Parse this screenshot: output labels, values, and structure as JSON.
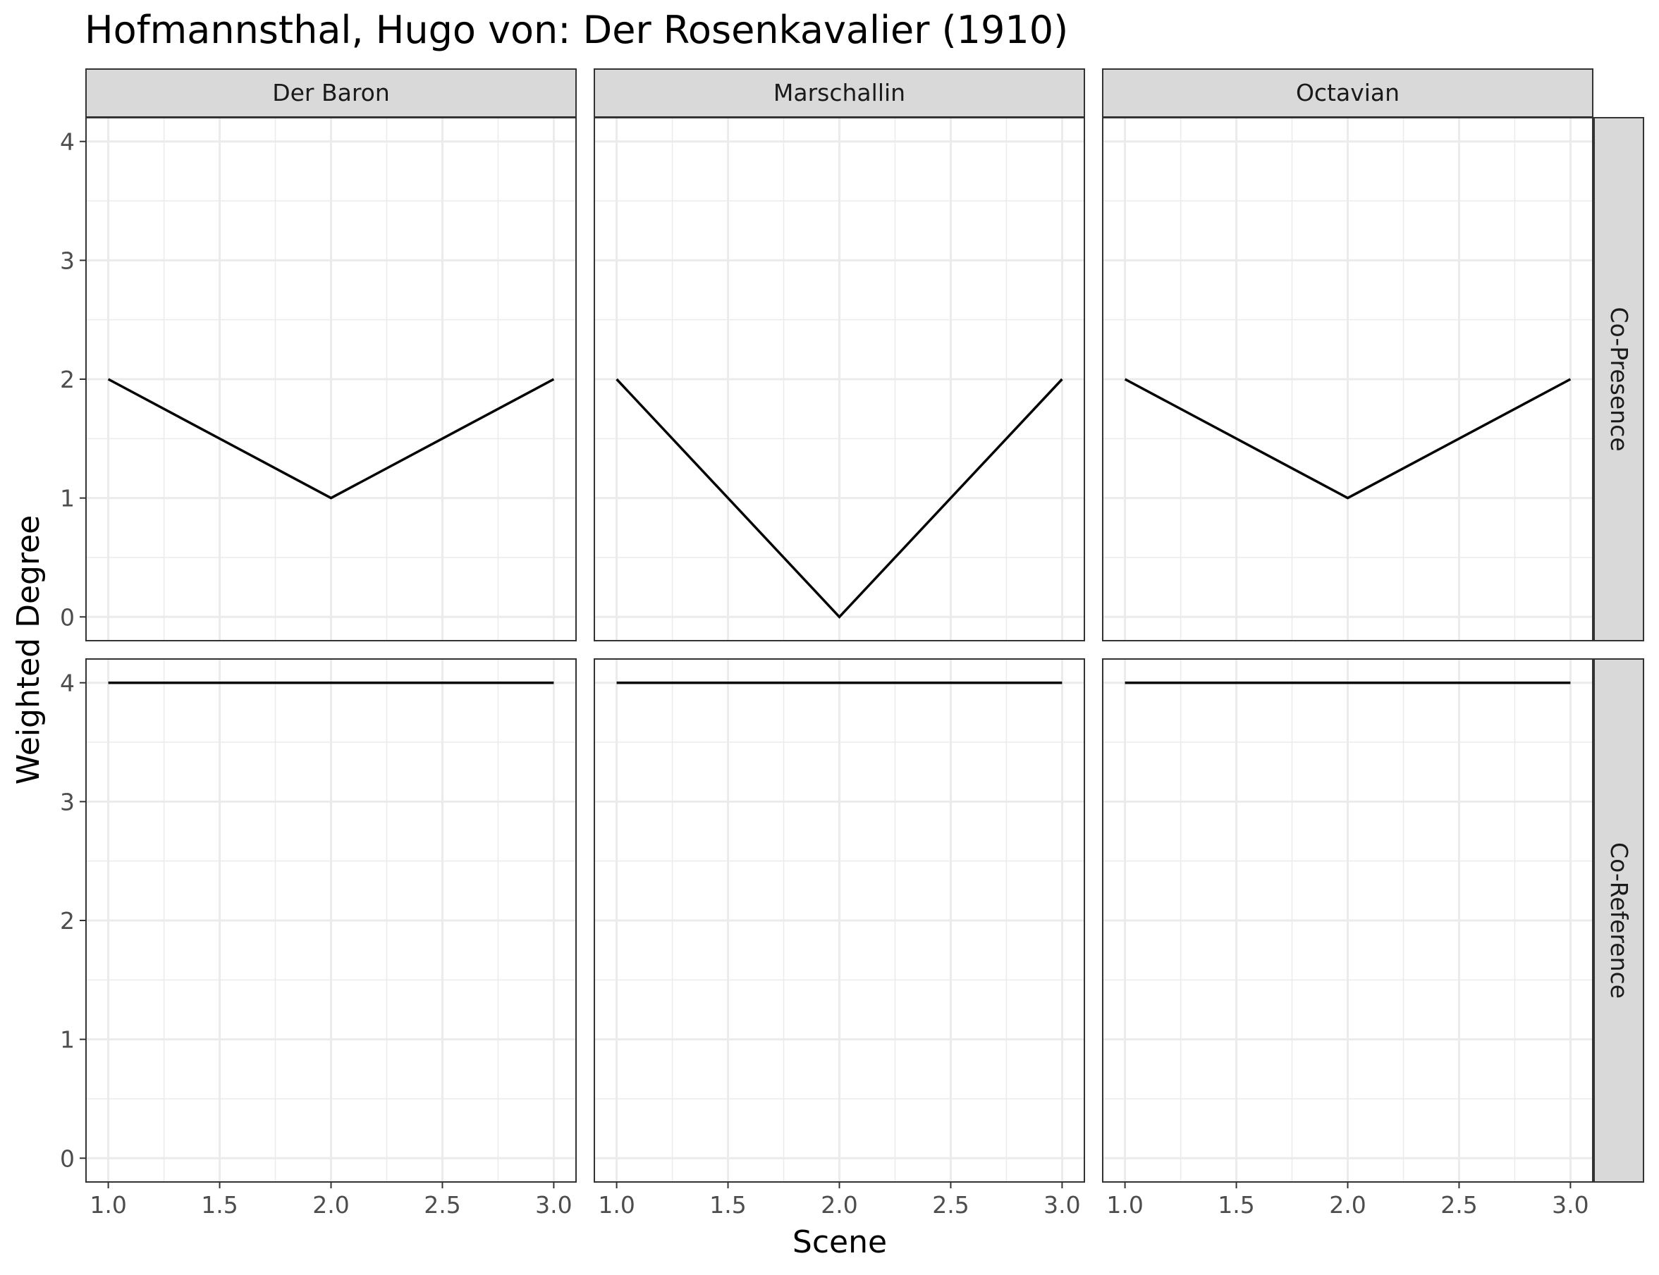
{
  "chart_data": {
    "type": "line",
    "title": "Hofmannsthal, Hugo von: Der Rosenkavalier (1910)",
    "xlabel": "Scene",
    "ylabel": "Weighted Degree",
    "xlim": [
      0.9,
      3.1
    ],
    "ylim": [
      -0.2,
      4.2
    ],
    "x_ticks": [
      "1.0",
      "1.5",
      "2.0",
      "2.5",
      "3.0"
    ],
    "y_ticks": [
      "0",
      "1",
      "2",
      "3",
      "4"
    ],
    "grid": true,
    "columns": [
      "Der Baron",
      "Marschallin",
      "Octavian"
    ],
    "rows": [
      "Co-Presence",
      "Co-Reference"
    ],
    "line_color": "#000000",
    "strip_color": "#d9d9d9",
    "panels": [
      {
        "column": "Der Baron",
        "row": "Co-Presence",
        "x": [
          1,
          2,
          3
        ],
        "y": [
          2,
          1,
          2
        ]
      },
      {
        "column": "Marschallin",
        "row": "Co-Presence",
        "x": [
          1,
          2,
          3
        ],
        "y": [
          2,
          0,
          2
        ]
      },
      {
        "column": "Octavian",
        "row": "Co-Presence",
        "x": [
          1,
          2,
          3
        ],
        "y": [
          2,
          1,
          2
        ]
      },
      {
        "column": "Der Baron",
        "row": "Co-Reference",
        "x": [
          1,
          2,
          3
        ],
        "y": [
          4,
          4,
          4
        ]
      },
      {
        "column": "Marschallin",
        "row": "Co-Reference",
        "x": [
          1,
          2,
          3
        ],
        "y": [
          4,
          4,
          4
        ]
      },
      {
        "column": "Octavian",
        "row": "Co-Reference",
        "x": [
          1,
          2,
          3
        ],
        "y": [
          4,
          4,
          4
        ]
      }
    ]
  }
}
